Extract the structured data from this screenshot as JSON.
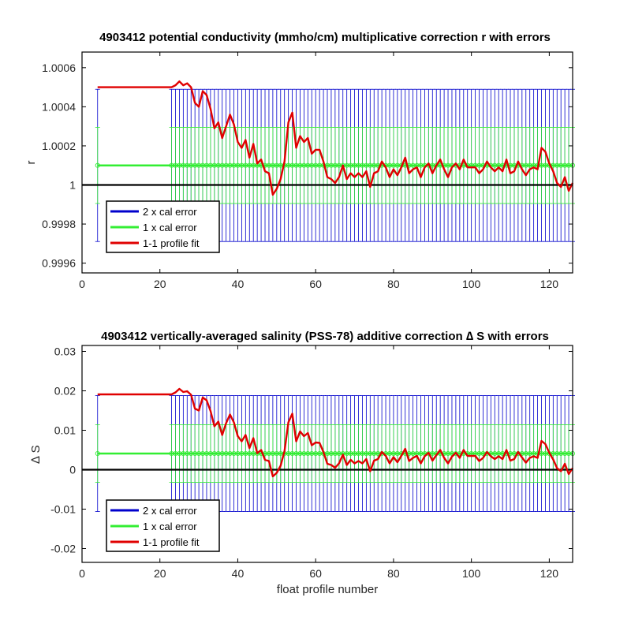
{
  "chart_data": [
    {
      "type": "line",
      "title": "4903412 potential conductivity (mmho/cm) multiplicative correction r with errors",
      "xlabel": "",
      "ylabel": "r",
      "xlim": [
        0,
        126
      ],
      "ylim": [
        0.99955,
        1.00068
      ],
      "xticks": [
        0,
        20,
        40,
        60,
        80,
        100,
        120
      ],
      "xtick_labels": [
        "0",
        "20",
        "40",
        "60",
        "80",
        "100",
        "120"
      ],
      "yticks": [
        0.9996,
        0.9998,
        1,
        1.0002,
        1.0004,
        1.0006
      ],
      "ytick_labels": [
        "0.9996",
        "0.9998",
        "1",
        "1.0002",
        "1.0004",
        "1.0006"
      ],
      "reference_line": 1,
      "legend": {
        "placement": "bottom-left",
        "entries": [
          "2 x cal error",
          "1 x cal error",
          "1-1 profile fit"
        ]
      },
      "colors": {
        "two_cal": "#0000CC",
        "one_cal": "#33EE33",
        "fit": "#E00000",
        "reference": "#000000"
      },
      "series": [
        {
          "name": "1 x cal error",
          "kind": "errorbar",
          "center": 1.0001,
          "error_1x": 0.0001947,
          "error_2x": 0.0003894,
          "profiles_start": 4,
          "bars_start": 23,
          "bars_end": 126,
          "bars_step": 1
        },
        {
          "name": "1-1 profile fit",
          "x": [
            4,
            23,
            24,
            25,
            26,
            27,
            28,
            29,
            30,
            31,
            32,
            33,
            34,
            35,
            36,
            37,
            38,
            39,
            40,
            41,
            42,
            43,
            44,
            45,
            46,
            47,
            48,
            49,
            50,
            51,
            52,
            53,
            54,
            55,
            56,
            57,
            58,
            59,
            60,
            61,
            62,
            63,
            64,
            65,
            66,
            67,
            68,
            69,
            70,
            71,
            72,
            73,
            74,
            75,
            76,
            77,
            78,
            79,
            80,
            81,
            82,
            83,
            84,
            85,
            86,
            87,
            88,
            89,
            90,
            91,
            92,
            93,
            94,
            95,
            96,
            97,
            98,
            99,
            100,
            101,
            102,
            103,
            104,
            105,
            106,
            107,
            108,
            109,
            110,
            111,
            112,
            113,
            114,
            115,
            116,
            117,
            118,
            119,
            120,
            121,
            122,
            123,
            124,
            125,
            126
          ],
          "y": [
            1.0005,
            1.0005,
            1.00051,
            1.00053,
            1.00051,
            1.00052,
            1.0005,
            1.00042,
            1.0004,
            1.00048,
            1.00046,
            1.00039,
            1.00029,
            1.00032,
            1.00024,
            1.0003,
            1.00036,
            1.00031,
            1.00022,
            1.00019,
            1.00023,
            1.00014,
            1.00021,
            1.00011,
            1.00013,
            1.00007,
            1.00006,
            0.99995,
            0.99998,
            1.00003,
            1.00012,
            1.00032,
            1.00037,
            1.00019,
            1.00025,
            1.00022,
            1.00024,
            1.00016,
            1.00018,
            1.00018,
            1.00012,
            1.00004,
            1.00003,
            1.00001,
            1.00004,
            1.0001,
            1.00003,
            1.00006,
            1.00004,
            1.00006,
            1.00004,
            1.00007,
            0.99999,
            1.00006,
            1.00007,
            1.00012,
            1.00009,
            1.00004,
            1.00008,
            1.00005,
            1.00009,
            1.00014,
            1.00006,
            1.00008,
            1.00009,
            1.00004,
            1.00009,
            1.00011,
            1.00006,
            1.0001,
            1.00013,
            1.00008,
            1.00004,
            1.00009,
            1.00011,
            1.00008,
            1.00013,
            1.00009,
            1.00009,
            1.00009,
            1.00006,
            1.00008,
            1.00012,
            1.00009,
            1.00007,
            1.00009,
            1.00007,
            1.00013,
            1.00006,
            1.00007,
            1.00012,
            1.00008,
            1.00005,
            1.00008,
            1.00009,
            1.00008,
            1.00019,
            1.00017,
            1.00011,
            1.00007,
            1.00001,
            0.99999,
            1.00004,
            0.99997,
            1.00001
          ]
        }
      ]
    },
    {
      "type": "line",
      "title": "4903412 vertically-averaged salinity (PSS-78) additive correction ∆ S with errors",
      "xlabel": "float profile number",
      "ylabel": "∆ S",
      "xlim": [
        0,
        126
      ],
      "ylim": [
        -0.0235,
        0.0315
      ],
      "xticks": [
        0,
        20,
        40,
        60,
        80,
        100,
        120
      ],
      "xtick_labels": [
        "0",
        "20",
        "40",
        "60",
        "80",
        "100",
        "120"
      ],
      "yticks": [
        -0.02,
        -0.01,
        0,
        0.01,
        0.02,
        0.03
      ],
      "ytick_labels": [
        "-0.02",
        "-0.01",
        "0",
        "0.01",
        "0.02",
        "0.03"
      ],
      "reference_line": 0,
      "legend": {
        "placement": "bottom-left",
        "entries": [
          "2 x cal error",
          "1 x cal error",
          "1-1 profile fit"
        ]
      },
      "colors": {
        "two_cal": "#0000CC",
        "one_cal": "#33EE33",
        "fit": "#E00000",
        "reference": "#000000"
      },
      "series": [
        {
          "name": "1 x cal error",
          "kind": "errorbar",
          "center": 0.0041,
          "error_1x": 0.0073,
          "error_2x": 0.0147,
          "profiles_start": 4,
          "bars_start": 23,
          "bars_end": 126,
          "bars_step": 1
        },
        {
          "name": "1-1 profile fit",
          "x": [
            4,
            23,
            24,
            25,
            26,
            27,
            28,
            29,
            30,
            31,
            32,
            33,
            34,
            35,
            36,
            37,
            38,
            39,
            40,
            41,
            42,
            43,
            44,
            45,
            46,
            47,
            48,
            49,
            50,
            51,
            52,
            53,
            54,
            55,
            56,
            57,
            58,
            59,
            60,
            61,
            62,
            63,
            64,
            65,
            66,
            67,
            68,
            69,
            70,
            71,
            72,
            73,
            74,
            75,
            76,
            77,
            78,
            79,
            80,
            81,
            82,
            83,
            84,
            85,
            86,
            87,
            88,
            89,
            90,
            91,
            92,
            93,
            94,
            95,
            96,
            97,
            98,
            99,
            100,
            101,
            102,
            103,
            104,
            105,
            106,
            107,
            108,
            109,
            110,
            111,
            112,
            113,
            114,
            115,
            116,
            117,
            118,
            119,
            120,
            121,
            122,
            123,
            124,
            125,
            126
          ],
          "y": [
            0.0191,
            0.0191,
            0.0196,
            0.0205,
            0.0197,
            0.0199,
            0.019,
            0.0155,
            0.015,
            0.0183,
            0.0176,
            0.0149,
            0.011,
            0.0122,
            0.0088,
            0.0118,
            0.014,
            0.012,
            0.0085,
            0.0072,
            0.0088,
            0.0055,
            0.008,
            0.0042,
            0.005,
            0.0025,
            0.0022,
            -0.0017,
            -0.0008,
            0.001,
            0.0047,
            0.012,
            0.0142,
            0.0072,
            0.0097,
            0.0085,
            0.0093,
            0.0062,
            0.0069,
            0.0068,
            0.0045,
            0.0015,
            0.0012,
            0.0005,
            0.0016,
            0.0038,
            0.0012,
            0.0025,
            0.0016,
            0.0022,
            0.0016,
            0.0027,
            -0.0004,
            0.0023,
            0.0027,
            0.0045,
            0.0035,
            0.0016,
            0.0032,
            0.0019,
            0.0035,
            0.0053,
            0.0022,
            0.003,
            0.0035,
            0.0016,
            0.0034,
            0.0043,
            0.0023,
            0.0037,
            0.005,
            0.003,
            0.0016,
            0.0033,
            0.0043,
            0.003,
            0.005,
            0.0035,
            0.0035,
            0.0035,
            0.0022,
            0.003,
            0.0045,
            0.0034,
            0.0027,
            0.0034,
            0.0027,
            0.005,
            0.0023,
            0.0027,
            0.0045,
            0.0031,
            0.0018,
            0.003,
            0.0034,
            0.003,
            0.0073,
            0.0065,
            0.0043,
            0.0026,
            0.0004,
            -0.0004,
            0.0015,
            -0.0011,
            0.0004
          ]
        }
      ]
    }
  ]
}
